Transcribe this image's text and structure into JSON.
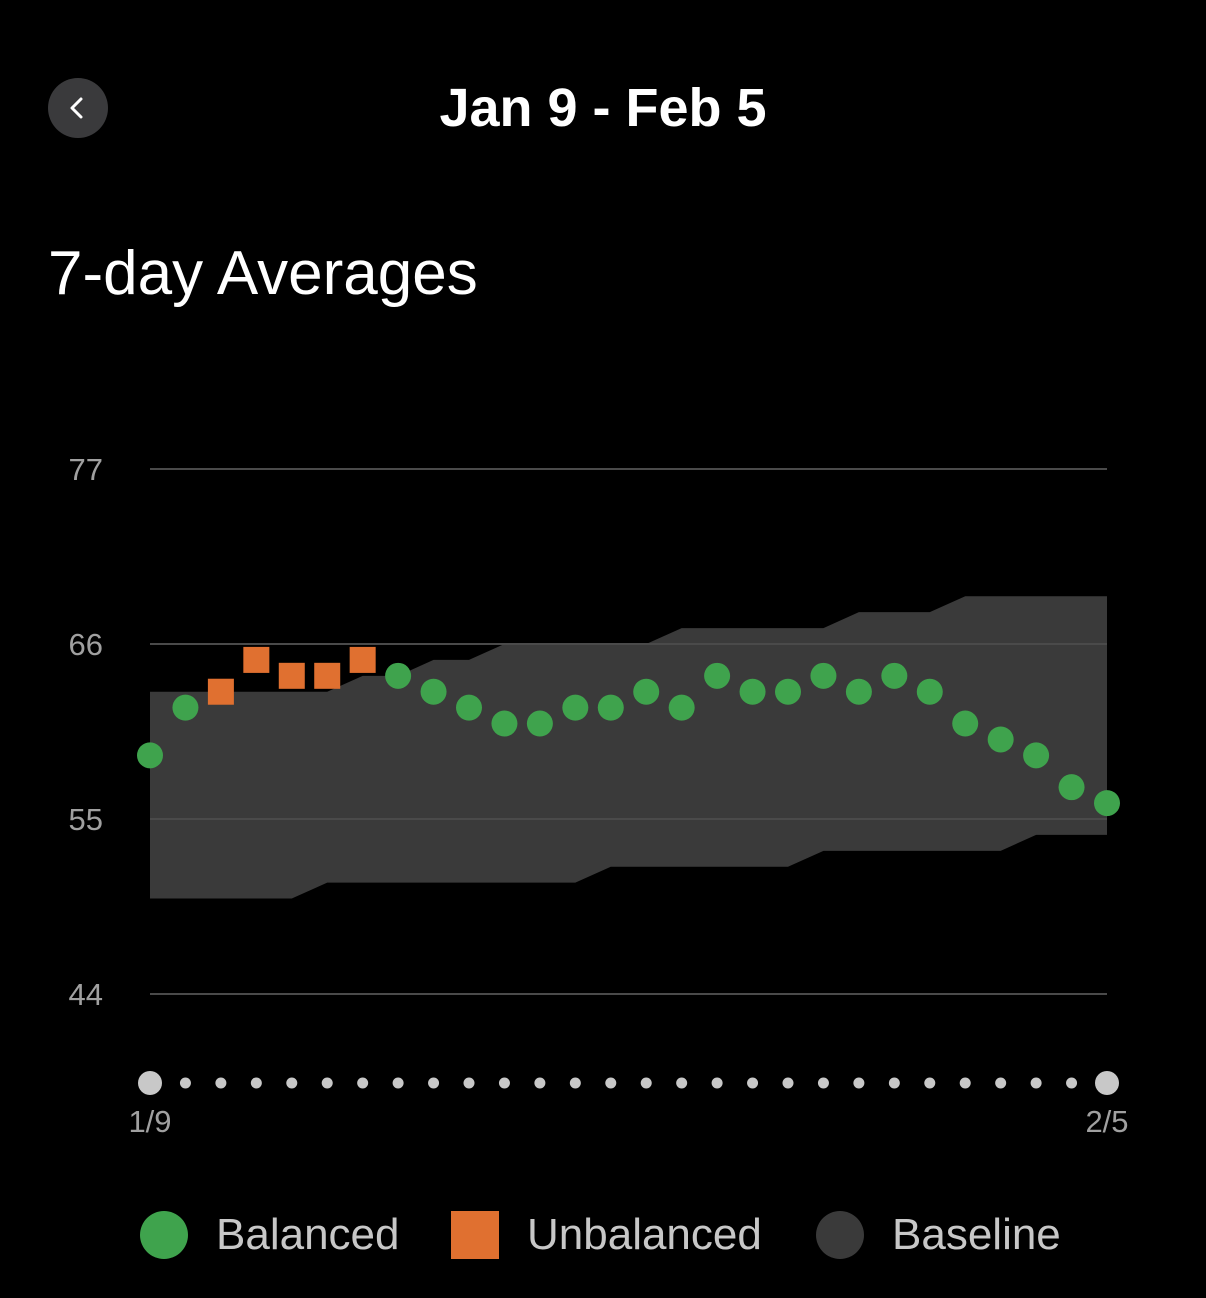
{
  "header": {
    "title": "Jan 9 - Feb 5",
    "back_icon": "chevron-left-icon"
  },
  "section": {
    "title": "7-day Averages"
  },
  "chart_data": {
    "type": "scatter",
    "y_ticks": [
      77,
      66,
      55,
      44
    ],
    "ylim": [
      44,
      77
    ],
    "x_labels": {
      "start": "1/9",
      "end": "2/5"
    },
    "x": [
      "1/9",
      "1/10",
      "1/11",
      "1/12",
      "1/13",
      "1/14",
      "1/15",
      "1/16",
      "1/17",
      "1/18",
      "1/19",
      "1/20",
      "1/21",
      "1/22",
      "1/23",
      "1/24",
      "1/25",
      "1/26",
      "1/27",
      "1/28",
      "1/29",
      "1/30",
      "1/31",
      "2/1",
      "2/2",
      "2/3",
      "2/4",
      "2/5"
    ],
    "values": [
      59,
      62,
      63,
      65,
      64,
      64,
      65,
      64,
      63,
      62,
      61,
      61,
      62,
      62,
      63,
      62,
      64,
      63,
      63,
      64,
      63,
      64,
      63,
      61,
      60,
      59,
      57,
      56
    ],
    "status": [
      "balanced",
      "balanced",
      "unbalanced",
      "unbalanced",
      "unbalanced",
      "unbalanced",
      "unbalanced",
      "balanced",
      "balanced",
      "balanced",
      "balanced",
      "balanced",
      "balanced",
      "balanced",
      "balanced",
      "balanced",
      "balanced",
      "balanced",
      "balanced",
      "balanced",
      "balanced",
      "balanced",
      "balanced",
      "balanced",
      "balanced",
      "balanced",
      "balanced",
      "balanced"
    ],
    "baseline_upper": [
      63,
      63,
      63,
      63,
      63,
      63,
      64,
      64,
      65,
      65,
      66,
      66,
      66,
      66,
      66,
      67,
      67,
      67,
      67,
      67,
      68,
      68,
      68,
      69,
      69,
      69,
      69,
      69
    ],
    "baseline_lower": [
      50,
      50,
      50,
      50,
      50,
      51,
      51,
      51,
      51,
      51,
      51,
      51,
      51,
      52,
      52,
      52,
      52,
      52,
      52,
      53,
      53,
      53,
      53,
      53,
      53,
      54,
      54,
      54
    ],
    "colors": {
      "balanced": "#3fa34d",
      "unbalanced": "#e07030",
      "baseline": "#3a3a3a",
      "grid": "#4a4a4a",
      "axis_text": "#a0a0a0",
      "day_dot": "#c8c8c8"
    },
    "grid": true,
    "legend": [
      {
        "label": "Balanced",
        "shape": "circle",
        "color": "#3fa34d"
      },
      {
        "label": "Unbalanced",
        "shape": "square",
        "color": "#e07030"
      },
      {
        "label": "Baseline",
        "shape": "circle",
        "color": "#3a3a3a"
      }
    ],
    "legend_placement": "bottom"
  }
}
